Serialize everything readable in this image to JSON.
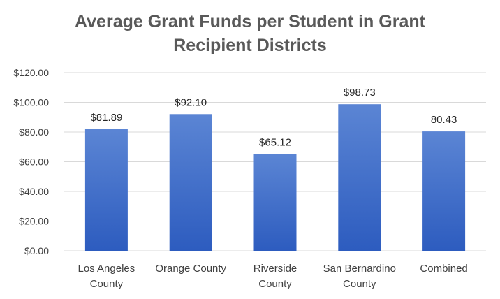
{
  "chart_data": {
    "type": "bar",
    "title_lines": [
      "Average Grant Funds per Student in Grant",
      "Recipient Districts"
    ],
    "categories": [
      [
        "Los Angeles",
        "County"
      ],
      [
        "Orange County"
      ],
      [
        "Riverside",
        "County"
      ],
      [
        "San Bernardino",
        "County"
      ],
      [
        "Combined"
      ]
    ],
    "values": [
      81.89,
      92.1,
      65.12,
      98.73,
      80.43
    ],
    "data_labels": [
      "$81.89",
      "$92.10",
      "$65.12",
      "$98.73",
      "80.43"
    ],
    "ylim": [
      0,
      120
    ],
    "yticks": [
      0,
      20,
      40,
      60,
      80,
      100,
      120
    ],
    "ytick_labels": [
      "$0.00",
      "$20.00",
      "$40.00",
      "$60.00",
      "$80.00",
      "$100.00",
      "$120.00"
    ],
    "grid": true,
    "legend": "none",
    "colors": {
      "bar_top": "#5b85d4",
      "bar_bottom": "#2d5cbf",
      "grid": "#d9d9d9",
      "text": "#404040",
      "title": "#595959"
    }
  }
}
